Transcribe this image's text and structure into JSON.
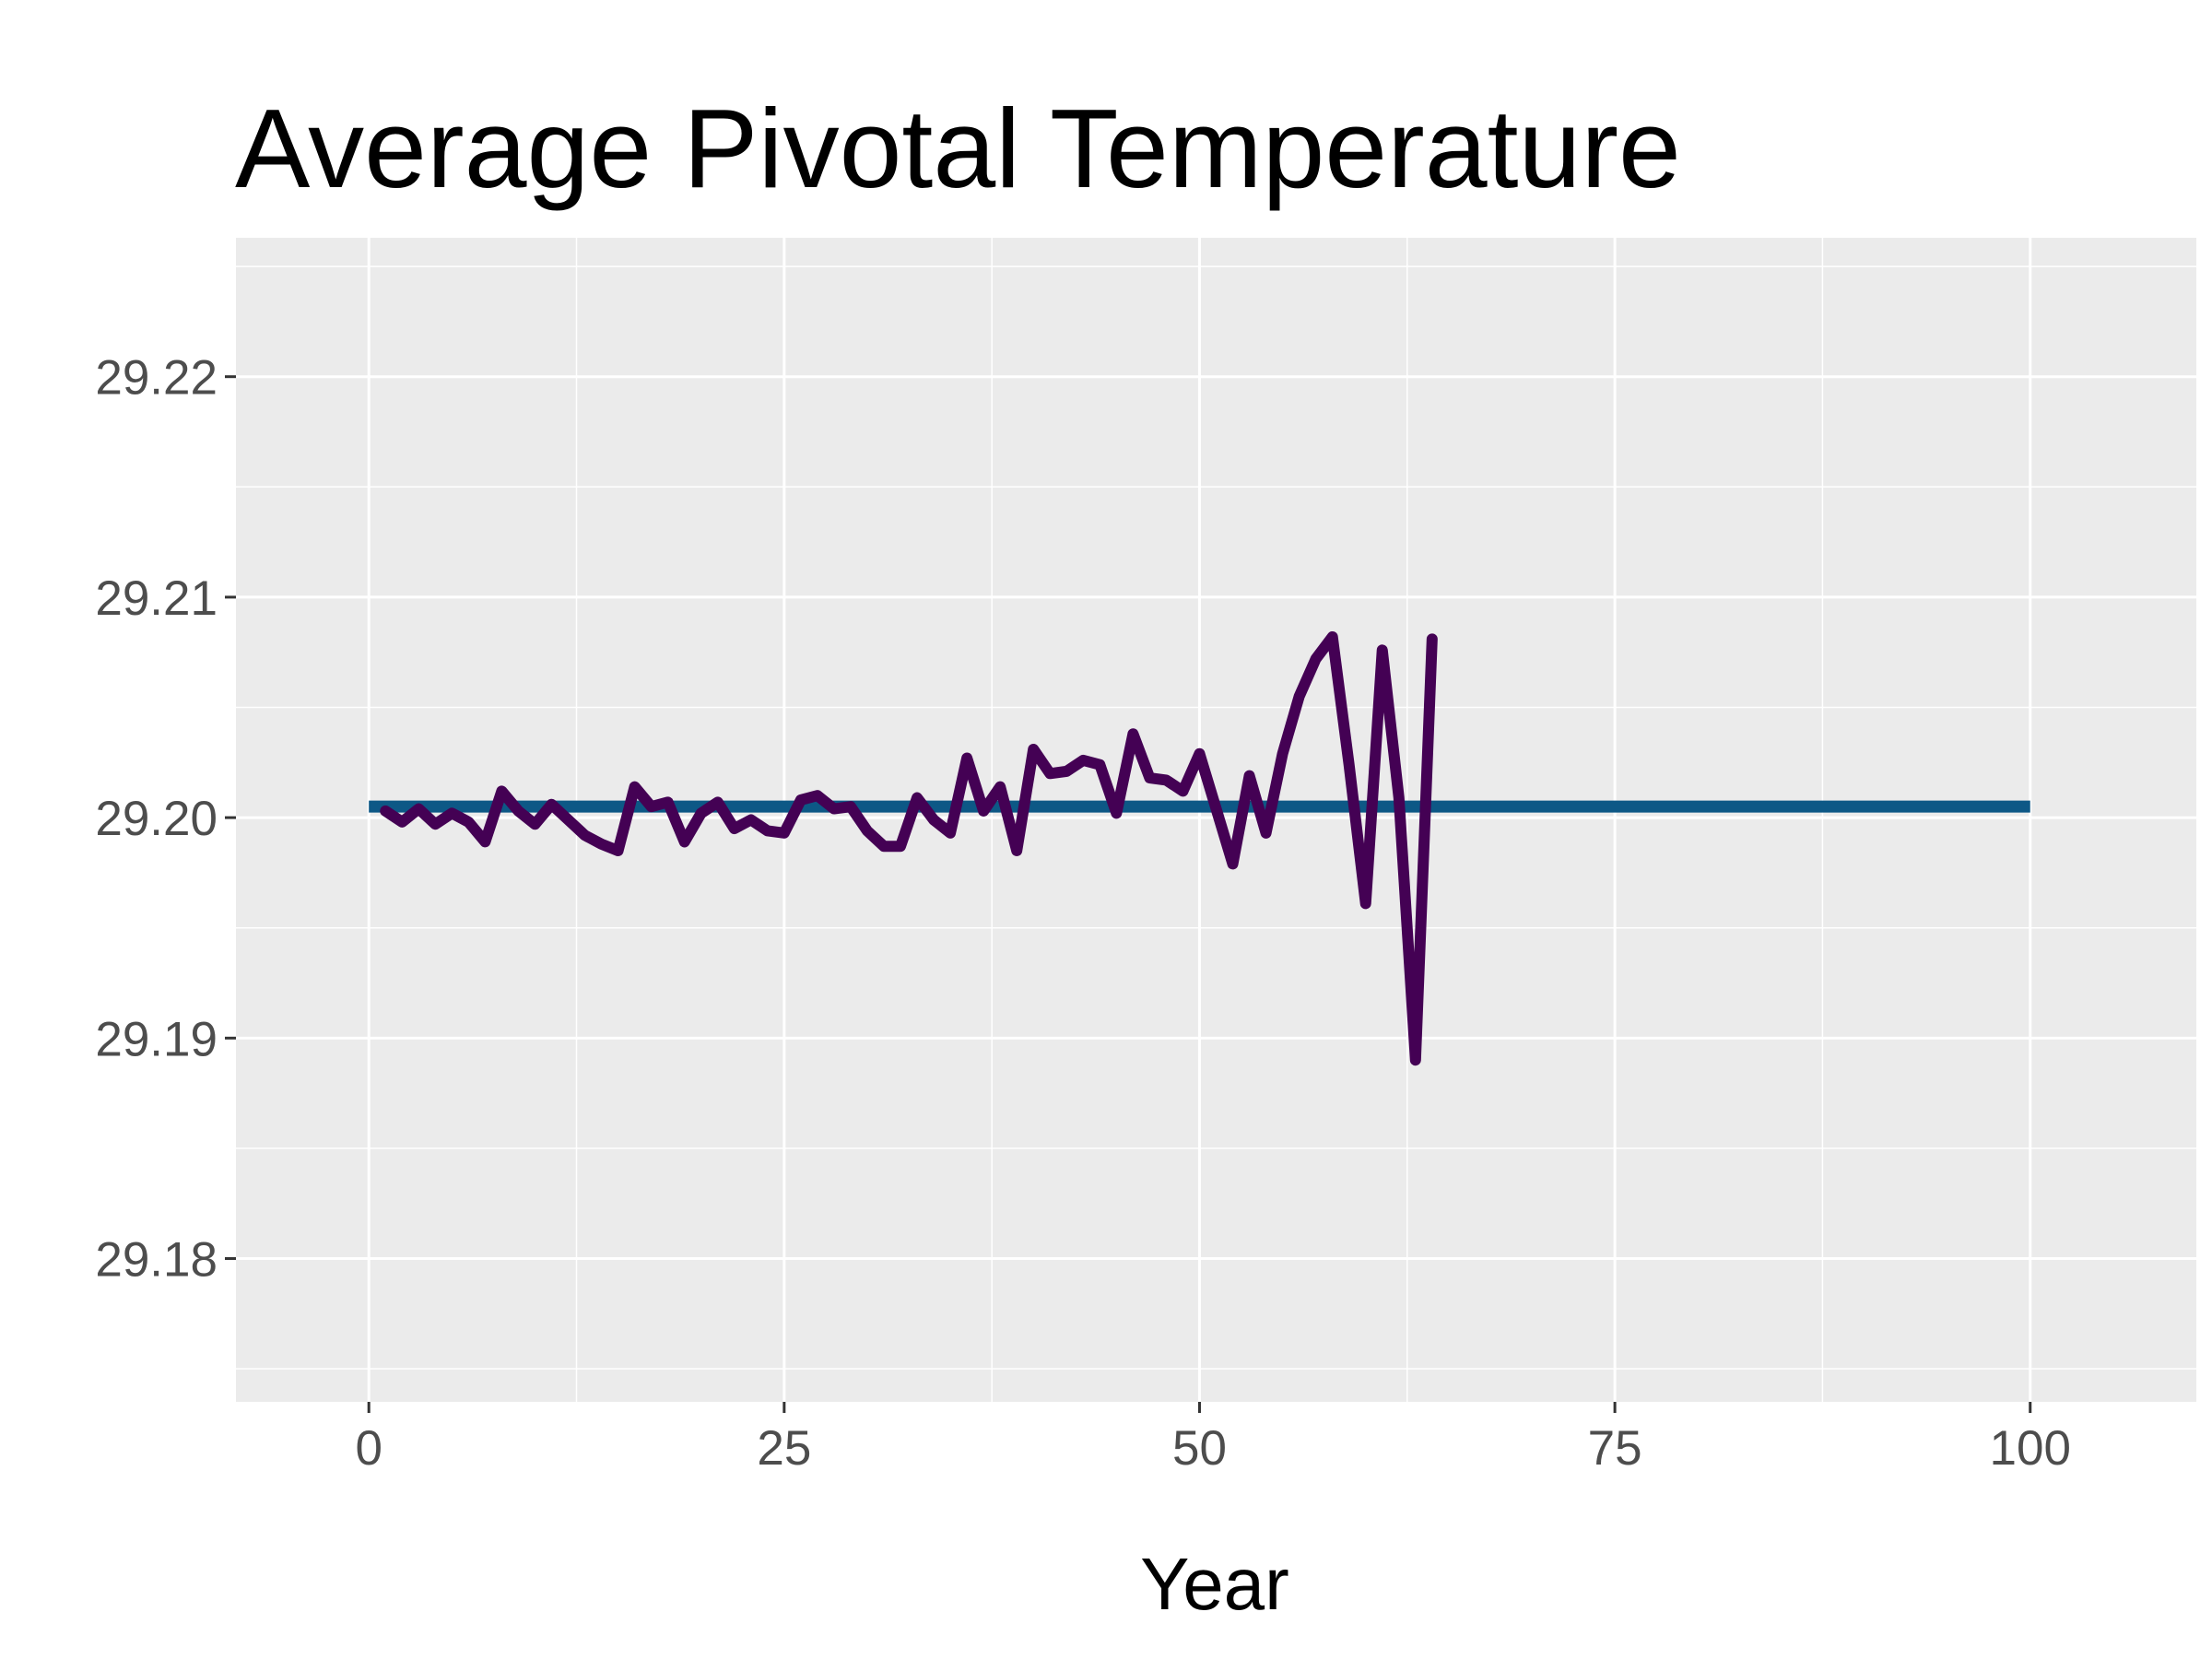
{
  "chart_data": {
    "type": "line",
    "title": "Average Pivotal Temperature",
    "xlabel": "Year",
    "ylabel": "",
    "xlim": [
      -8,
      110
    ],
    "ylim": [
      29.1735,
      29.2263
    ],
    "x_ticks": [
      0,
      25,
      50,
      75,
      100
    ],
    "x_tick_labels": [
      "0",
      "25",
      "50",
      "75",
      "100"
    ],
    "y_ticks": [
      29.18,
      29.19,
      29.2,
      29.21,
      29.22
    ],
    "y_tick_labels": [
      "29.18",
      "29.19",
      "29.20",
      "29.21",
      "29.22"
    ],
    "grid": true,
    "legend": "none",
    "colors": {
      "panel_background": "#ebebeb",
      "grid": "#ffffff",
      "reference_line": "#0d5886",
      "series_line": "#440154"
    },
    "series": [
      {
        "style": "reference",
        "x": [
          0,
          100
        ],
        "values": [
          29.2005,
          29.2005
        ]
      },
      {
        "style": "main",
        "x": [
          1,
          2,
          3,
          4,
          5,
          6,
          7,
          8,
          9,
          10,
          11,
          12,
          13,
          14,
          15,
          16,
          17,
          18,
          19,
          20,
          21,
          22,
          23,
          24,
          25,
          26,
          27,
          28,
          29,
          30,
          31,
          32,
          33,
          34,
          35,
          36,
          37,
          38,
          39,
          40,
          41,
          42,
          43,
          44,
          45,
          46,
          47,
          48,
          49,
          50,
          51,
          52,
          53,
          54,
          55,
          56,
          57,
          58,
          59,
          60,
          61,
          62,
          63,
          64
        ],
        "values": [
          29.2003,
          29.1998,
          29.2004,
          29.1997,
          29.2002,
          29.1998,
          29.1989,
          29.2012,
          29.2003,
          29.1997,
          29.2006,
          29.1999,
          29.1992,
          29.1988,
          29.1985,
          29.2014,
          29.2005,
          29.2007,
          29.1989,
          29.2002,
          29.2007,
          29.1995,
          29.1999,
          29.1994,
          29.1993,
          29.2008,
          29.201,
          29.2004,
          29.2005,
          29.1994,
          29.1987,
          29.1987,
          29.2009,
          29.1999,
          29.1993,
          29.2027,
          29.2003,
          29.2014,
          29.1985,
          29.2031,
          29.202,
          29.2021,
          29.2026,
          29.2024,
          29.2002,
          29.2038,
          29.2018,
          29.2017,
          29.2012,
          29.2029,
          29.2004,
          29.1979,
          29.2019,
          29.1993,
          29.2029,
          29.2055,
          29.2072,
          29.2082,
          29.2024,
          29.1961,
          29.2076,
          29.2009,
          29.189,
          29.2081
        ]
      }
    ]
  }
}
